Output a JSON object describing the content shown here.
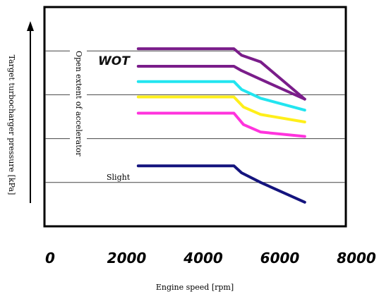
{
  "chart_data": {
    "type": "line",
    "xlabel": "Engine speed  [rpm]",
    "ylabel": "Target turbocharger pressure  [kPa]",
    "xlim": [
      0,
      8000
    ],
    "ylim": [
      0,
      5
    ],
    "x_ticks": [
      "0",
      "2000",
      "4000",
      "6000",
      "8000"
    ],
    "grid": "horizontal",
    "annotations": {
      "wot": "WOT",
      "slight": "Slight",
      "accelerator_axis": "Open extent of accelerator"
    },
    "series": [
      {
        "color": "#7a1d8a",
        "points": [
          [
            2300,
            4.05
          ],
          [
            4800,
            4.05
          ],
          [
            5000,
            3.9
          ],
          [
            5500,
            3.75
          ],
          [
            6650,
            2.9
          ]
        ]
      },
      {
        "color": "#7a1d8a",
        "points": [
          [
            2300,
            3.65
          ],
          [
            4800,
            3.65
          ],
          [
            5000,
            3.55
          ],
          [
            5500,
            3.35
          ],
          [
            6650,
            2.9
          ]
        ]
      },
      {
        "color": "#22e5f0",
        "points": [
          [
            2300,
            3.3
          ],
          [
            4800,
            3.3
          ],
          [
            5000,
            3.12
          ],
          [
            5500,
            2.92
          ],
          [
            6650,
            2.65
          ]
        ]
      },
      {
        "color": "#ffef1a",
        "points": [
          [
            2300,
            2.95
          ],
          [
            4800,
            2.95
          ],
          [
            5050,
            2.72
          ],
          [
            5500,
            2.55
          ],
          [
            6650,
            2.38
          ]
        ]
      },
      {
        "color": "#ff33dd",
        "points": [
          [
            2300,
            2.58
          ],
          [
            4800,
            2.58
          ],
          [
            5050,
            2.32
          ],
          [
            5500,
            2.15
          ],
          [
            6650,
            2.05
          ]
        ]
      },
      {
        "color": "#14147e",
        "points": [
          [
            2300,
            1.38
          ],
          [
            4800,
            1.38
          ],
          [
            5000,
            1.22
          ],
          [
            5500,
            1.0
          ],
          [
            6650,
            0.55
          ]
        ]
      }
    ],
    "gridlines_y": [
      1.0,
      2.0,
      3.0,
      4.0
    ]
  }
}
